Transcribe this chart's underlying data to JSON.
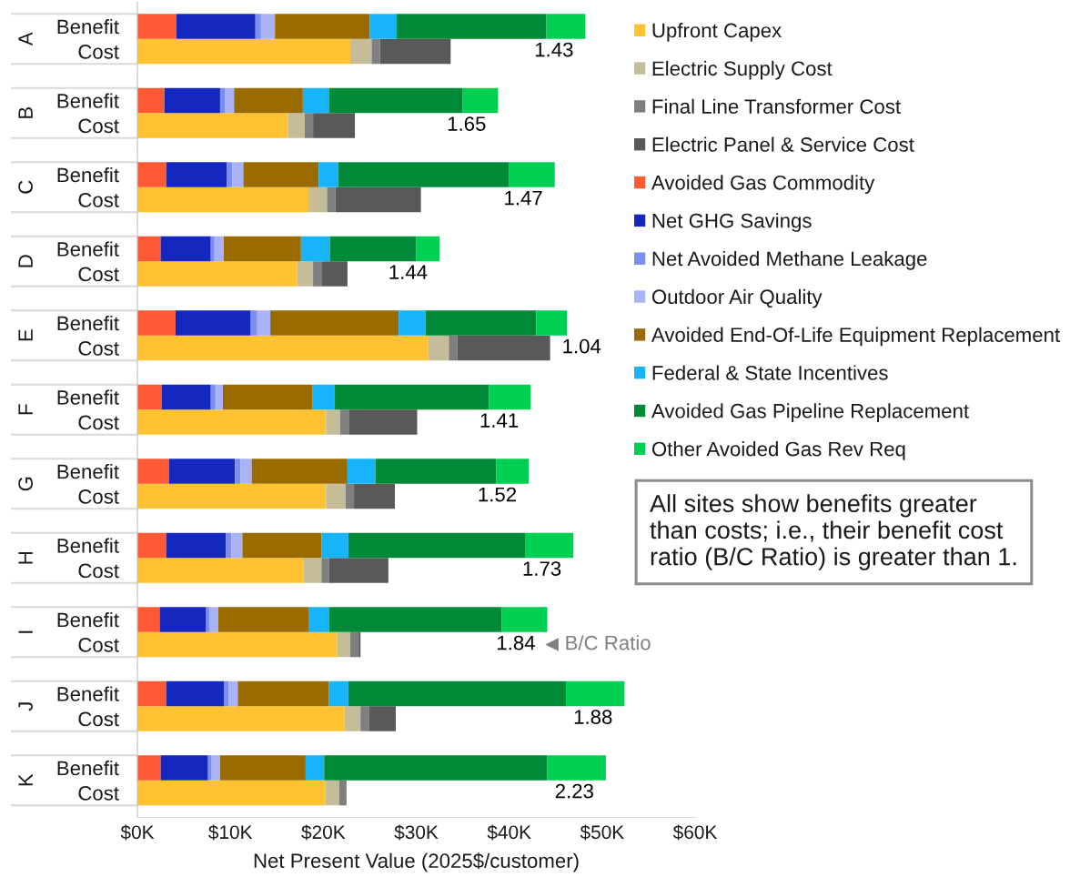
{
  "chart_data": [
    {
      "type": "bar",
      "orientation": "horizontal",
      "stacked": true,
      "title": "A",
      "categories": [
        "Benefit",
        "Cost"
      ],
      "xlim": [
        0,
        60
      ],
      "tick_labels": "y",
      "legend": "right",
      "series": [
        {
          "name": "Upfront Capex",
          "color": "#fec232",
          "values": [
            null,
            22.9
          ]
        },
        {
          "name": "Electric Supply Cost",
          "color": "#c4bd97",
          "values": [
            null,
            2.3
          ]
        },
        {
          "name": "Final Line Transformer Cost",
          "color": "#7f7f7f",
          "values": [
            null,
            0.9
          ]
        },
        {
          "name": "Electric Panel & Service Cost",
          "color": "#595959",
          "values": [
            null,
            7.6
          ]
        },
        {
          "name": "Avoided Gas Commodity",
          "color": "#ff5a36",
          "values": [
            4.2,
            null
          ]
        },
        {
          "name": "Net GHG Savings",
          "color": "#1427be",
          "values": [
            8.5,
            null
          ]
        },
        {
          "name": "Net Avoided Methane Leakage",
          "color": "#7c8ef0",
          "values": [
            0.6,
            null
          ]
        },
        {
          "name": "Outdoor Air Quality",
          "color": "#abb3f7",
          "values": [
            1.5,
            null
          ]
        },
        {
          "name": "Avoided End-Of-Life Equipment Replacement",
          "color": "#996b00",
          "values": [
            10.2,
            null
          ]
        },
        {
          "name": "Federal & State Incentives",
          "color": "#17b4fa",
          "values": [
            2.9,
            null
          ]
        },
        {
          "name": "Avoided Gas Pipeline Replacement",
          "color": "#008a38",
          "values": [
            16.1,
            null
          ]
        },
        {
          "name": "Other Avoided Gas Rev Req",
          "color": "#00d052",
          "values": [
            4.2,
            null
          ]
        }
      ],
      "annotations": [
        "1.43"
      ]
    },
    {
      "type": "bar",
      "orientation": "horizontal",
      "stacked": true,
      "title": "B",
      "categories": [
        "Benefit",
        "Cost"
      ],
      "xlim": [
        0,
        60
      ],
      "tick_labels": "y",
      "series": [
        {
          "color": "#fec232",
          "values": [
            null,
            16.2
          ]
        },
        {
          "color": "#c4bd97",
          "values": [
            null,
            1.8
          ]
        },
        {
          "color": "#7f7f7f",
          "values": [
            null,
            0.9
          ]
        },
        {
          "color": "#595959",
          "values": [
            null,
            4.5
          ]
        },
        {
          "color": "#ff5a36",
          "values": [
            2.9,
            null
          ]
        },
        {
          "color": "#1427be",
          "values": [
            6.0,
            null
          ]
        },
        {
          "color": "#7c8ef0",
          "values": [
            0.5,
            null
          ]
        },
        {
          "color": "#abb3f7",
          "values": [
            1.0,
            null
          ]
        },
        {
          "color": "#996b00",
          "values": [
            7.4,
            null
          ]
        },
        {
          "color": "#17b4fa",
          "values": [
            2.8,
            null
          ]
        },
        {
          "color": "#008a38",
          "values": [
            14.4,
            null
          ]
        },
        {
          "color": "#00d052",
          "values": [
            3.8,
            null
          ]
        }
      ],
      "annotations": [
        "1.65"
      ]
    },
    {
      "type": "bar",
      "orientation": "horizontal",
      "stacked": true,
      "title": "C",
      "categories": [
        "Benefit",
        "Cost"
      ],
      "xlim": [
        0,
        60
      ],
      "tick_labels": "y",
      "series": [
        {
          "color": "#fec232",
          "values": [
            null,
            18.4
          ]
        },
        {
          "color": "#c4bd97",
          "values": [
            null,
            2.0
          ]
        },
        {
          "color": "#7f7f7f",
          "values": [
            null,
            0.9
          ]
        },
        {
          "color": "#595959",
          "values": [
            null,
            9.2
          ]
        },
        {
          "color": "#ff5a36",
          "values": [
            3.1,
            null
          ]
        },
        {
          "color": "#1427be",
          "values": [
            6.5,
            null
          ]
        },
        {
          "color": "#7c8ef0",
          "values": [
            0.6,
            null
          ]
        },
        {
          "color": "#abb3f7",
          "values": [
            1.2,
            null
          ]
        },
        {
          "color": "#996b00",
          "values": [
            8.1,
            null
          ]
        },
        {
          "color": "#17b4fa",
          "values": [
            2.1,
            null
          ]
        },
        {
          "color": "#008a38",
          "values": [
            18.4,
            null
          ]
        },
        {
          "color": "#00d052",
          "values": [
            4.9,
            null
          ]
        }
      ],
      "annotations": [
        "1.47"
      ]
    },
    {
      "type": "bar",
      "orientation": "horizontal",
      "stacked": true,
      "title": "D",
      "categories": [
        "Benefit",
        "Cost"
      ],
      "xlim": [
        0,
        60
      ],
      "tick_labels": "y",
      "series": [
        {
          "color": "#fec232",
          "values": [
            null,
            17.2
          ]
        },
        {
          "color": "#c4bd97",
          "values": [
            null,
            1.7
          ]
        },
        {
          "color": "#7f7f7f",
          "values": [
            null,
            0.9
          ]
        },
        {
          "color": "#595959",
          "values": [
            null,
            2.8
          ]
        },
        {
          "color": "#ff5a36",
          "values": [
            2.5,
            null
          ]
        },
        {
          "color": "#1427be",
          "values": [
            5.4,
            null
          ]
        },
        {
          "color": "#7c8ef0",
          "values": [
            0.4,
            null
          ]
        },
        {
          "color": "#abb3f7",
          "values": [
            1.0,
            null
          ]
        },
        {
          "color": "#996b00",
          "values": [
            8.3,
            null
          ]
        },
        {
          "color": "#17b4fa",
          "values": [
            3.1,
            null
          ]
        },
        {
          "color": "#008a38",
          "values": [
            9.3,
            null
          ]
        },
        {
          "color": "#00d052",
          "values": [
            2.5,
            null
          ]
        }
      ],
      "annotations": [
        "1.44"
      ]
    },
    {
      "type": "bar",
      "orientation": "horizontal",
      "stacked": true,
      "title": "E",
      "categories": [
        "Benefit",
        "Cost"
      ],
      "xlim": [
        0,
        60
      ],
      "tick_labels": "y",
      "series": [
        {
          "color": "#fec232",
          "values": [
            null,
            31.3
          ]
        },
        {
          "color": "#c4bd97",
          "values": [
            null,
            2.2
          ]
        },
        {
          "color": "#7f7f7f",
          "values": [
            null,
            0.9
          ]
        },
        {
          "color": "#595959",
          "values": [
            null,
            10.0
          ]
        },
        {
          "color": "#ff5a36",
          "values": [
            4.1,
            null
          ]
        },
        {
          "color": "#1427be",
          "values": [
            8.1,
            null
          ]
        },
        {
          "color": "#7c8ef0",
          "values": [
            0.7,
            null
          ]
        },
        {
          "color": "#abb3f7",
          "values": [
            1.4,
            null
          ]
        },
        {
          "color": "#996b00",
          "values": [
            13.8,
            null
          ]
        },
        {
          "color": "#17b4fa",
          "values": [
            2.9,
            null
          ]
        },
        {
          "color": "#008a38",
          "values": [
            11.9,
            null
          ]
        },
        {
          "color": "#00d052",
          "values": [
            3.3,
            null
          ]
        }
      ],
      "annotations": [
        "1.04"
      ]
    },
    {
      "type": "bar",
      "orientation": "horizontal",
      "stacked": true,
      "title": "F",
      "categories": [
        "Benefit",
        "Cost"
      ],
      "xlim": [
        0,
        60
      ],
      "tick_labels": "y",
      "series": [
        {
          "color": "#fec232",
          "values": [
            null,
            20.3
          ]
        },
        {
          "color": "#c4bd97",
          "values": [
            null,
            1.5
          ]
        },
        {
          "color": "#7f7f7f",
          "values": [
            null,
            1.0
          ]
        },
        {
          "color": "#595959",
          "values": [
            null,
            7.3
          ]
        },
        {
          "color": "#ff5a36",
          "values": [
            2.6,
            null
          ]
        },
        {
          "color": "#1427be",
          "values": [
            5.3,
            null
          ]
        },
        {
          "color": "#7c8ef0",
          "values": [
            0.5,
            null
          ]
        },
        {
          "color": "#abb3f7",
          "values": [
            0.8,
            null
          ]
        },
        {
          "color": "#996b00",
          "values": [
            9.6,
            null
          ]
        },
        {
          "color": "#17b4fa",
          "values": [
            2.4,
            null
          ]
        },
        {
          "color": "#008a38",
          "values": [
            16.6,
            null
          ]
        },
        {
          "color": "#00d052",
          "values": [
            4.5,
            null
          ]
        }
      ],
      "annotations": [
        "1.41"
      ]
    },
    {
      "type": "bar",
      "orientation": "horizontal",
      "stacked": true,
      "title": "G",
      "categories": [
        "Benefit",
        "Cost"
      ],
      "xlim": [
        0,
        60
      ],
      "tick_labels": "y",
      "series": [
        {
          "color": "#fec232",
          "values": [
            null,
            20.3
          ]
        },
        {
          "color": "#c4bd97",
          "values": [
            null,
            2.1
          ]
        },
        {
          "color": "#7f7f7f",
          "values": [
            null,
            0.9
          ]
        },
        {
          "color": "#595959",
          "values": [
            null,
            4.4
          ]
        },
        {
          "color": "#ff5a36",
          "values": [
            3.4,
            null
          ]
        },
        {
          "color": "#1427be",
          "values": [
            7.1,
            null
          ]
        },
        {
          "color": "#7c8ef0",
          "values": [
            0.6,
            null
          ]
        },
        {
          "color": "#abb3f7",
          "values": [
            1.2,
            null
          ]
        },
        {
          "color": "#996b00",
          "values": [
            10.3,
            null
          ]
        },
        {
          "color": "#17b4fa",
          "values": [
            3.0,
            null
          ]
        },
        {
          "color": "#008a38",
          "values": [
            13.0,
            null
          ]
        },
        {
          "color": "#00d052",
          "values": [
            3.5,
            null
          ]
        }
      ],
      "annotations": [
        "1.52"
      ]
    },
    {
      "type": "bar",
      "orientation": "horizontal",
      "stacked": true,
      "title": "H",
      "categories": [
        "Benefit",
        "Cost"
      ],
      "xlim": [
        0,
        60
      ],
      "tick_labels": "y",
      "series": [
        {
          "color": "#fec232",
          "values": [
            null,
            17.9
          ]
        },
        {
          "color": "#c4bd97",
          "values": [
            null,
            1.9
          ]
        },
        {
          "color": "#7f7f7f",
          "values": [
            null,
            0.8
          ]
        },
        {
          "color": "#595959",
          "values": [
            null,
            6.4
          ]
        },
        {
          "color": "#ff5a36",
          "values": [
            3.1,
            null
          ]
        },
        {
          "color": "#1427be",
          "values": [
            6.4,
            null
          ]
        },
        {
          "color": "#7c8ef0",
          "values": [
            0.6,
            null
          ]
        },
        {
          "color": "#abb3f7",
          "values": [
            1.2,
            null
          ]
        },
        {
          "color": "#996b00",
          "values": [
            8.5,
            null
          ]
        },
        {
          "color": "#17b4fa",
          "values": [
            2.9,
            null
          ]
        },
        {
          "color": "#008a38",
          "values": [
            19.0,
            null
          ]
        },
        {
          "color": "#00d052",
          "values": [
            5.2,
            null
          ]
        }
      ],
      "annotations": [
        "1.73"
      ]
    },
    {
      "type": "bar",
      "orientation": "horizontal",
      "stacked": true,
      "title": "I",
      "categories": [
        "Benefit",
        "Cost"
      ],
      "xlim": [
        0,
        60
      ],
      "tick_labels": "y",
      "series": [
        {
          "color": "#fec232",
          "values": [
            null,
            21.5
          ]
        },
        {
          "color": "#c4bd97",
          "values": [
            null,
            1.4
          ]
        },
        {
          "color": "#7f7f7f",
          "values": [
            null,
            0.9
          ]
        },
        {
          "color": "#595959",
          "values": [
            null,
            0.2
          ]
        },
        {
          "color": "#ff5a36",
          "values": [
            2.4,
            null
          ]
        },
        {
          "color": "#1427be",
          "values": [
            5.0,
            null
          ]
        },
        {
          "color": "#7c8ef0",
          "values": [
            0.4,
            null
          ]
        },
        {
          "color": "#abb3f7",
          "values": [
            0.9,
            null
          ]
        },
        {
          "color": "#996b00",
          "values": [
            9.7,
            null
          ]
        },
        {
          "color": "#17b4fa",
          "values": [
            2.2,
            null
          ]
        },
        {
          "color": "#008a38",
          "values": [
            18.6,
            null
          ]
        },
        {
          "color": "#00d052",
          "values": [
            4.9,
            null
          ]
        }
      ],
      "annotations": [
        "1.84",
        "B/C Ratio"
      ]
    },
    {
      "type": "bar",
      "orientation": "horizontal",
      "stacked": true,
      "title": "J",
      "categories": [
        "Benefit",
        "Cost"
      ],
      "xlim": [
        0,
        60
      ],
      "tick_labels": "y",
      "series": [
        {
          "color": "#fec232",
          "values": [
            null,
            22.3
          ]
        },
        {
          "color": "#c4bd97",
          "values": [
            null,
            1.7
          ]
        },
        {
          "color": "#7f7f7f",
          "values": [
            null,
            0.9
          ]
        },
        {
          "color": "#595959",
          "values": [
            null,
            2.9
          ]
        },
        {
          "color": "#ff5a36",
          "values": [
            3.1,
            null
          ]
        },
        {
          "color": "#1427be",
          "values": [
            6.2,
            null
          ]
        },
        {
          "color": "#7c8ef0",
          "values": [
            0.5,
            null
          ]
        },
        {
          "color": "#abb3f7",
          "values": [
            1.0,
            null
          ]
        },
        {
          "color": "#996b00",
          "values": [
            9.8,
            null
          ]
        },
        {
          "color": "#17b4fa",
          "values": [
            2.1,
            null
          ]
        },
        {
          "color": "#008a38",
          "values": [
            23.4,
            null
          ]
        },
        {
          "color": "#00d052",
          "values": [
            6.3,
            null
          ]
        }
      ],
      "annotations": [
        "1.88"
      ]
    },
    {
      "type": "bar",
      "orientation": "horizontal",
      "stacked": true,
      "title": "K",
      "categories": [
        "Benefit",
        "Cost"
      ],
      "xlim": [
        0,
        60
      ],
      "xticks": [
        {
          "value": 0,
          "label": "$0K"
        },
        {
          "value": 10,
          "label": "$10K"
        },
        {
          "value": 20,
          "label": "$20K"
        },
        {
          "value": 30,
          "label": "$30K"
        },
        {
          "value": 40,
          "label": "$40K"
        },
        {
          "value": 50,
          "label": "$50K"
        },
        {
          "value": 60,
          "label": "$60K"
        }
      ],
      "xlabel": "Net Present Value (2025$/customer)",
      "series": [
        {
          "color": "#fec232",
          "values": [
            null,
            20.2
          ]
        },
        {
          "color": "#c4bd97",
          "values": [
            null,
            1.5
          ]
        },
        {
          "color": "#7f7f7f",
          "values": [
            null,
            0.8
          ]
        },
        {
          "color": "#595959",
          "values": [
            null,
            null
          ]
        },
        {
          "color": "#ff5a36",
          "values": [
            2.5,
            null
          ]
        },
        {
          "color": "#1427be",
          "values": [
            5.1,
            null
          ]
        },
        {
          "color": "#7c8ef0",
          "values": [
            0.4,
            null
          ]
        },
        {
          "color": "#abb3f7",
          "values": [
            0.9,
            null
          ]
        },
        {
          "color": "#996b00",
          "values": [
            9.2,
            null
          ]
        },
        {
          "color": "#17b4fa",
          "values": [
            2.0,
            null
          ]
        },
        {
          "color": "#008a38",
          "values": [
            24.0,
            null
          ]
        },
        {
          "color": "#00d052",
          "values": [
            6.3,
            null
          ]
        }
      ],
      "annotations": [
        "2.23"
      ]
    },
    {
      "type": "other",
      "annotations": [
        "All sites show benefits greater\nthan costs; i.e., their benefit cost\nratio (B/C Ratio) is greater than 1."
      ]
    }
  ]
}
